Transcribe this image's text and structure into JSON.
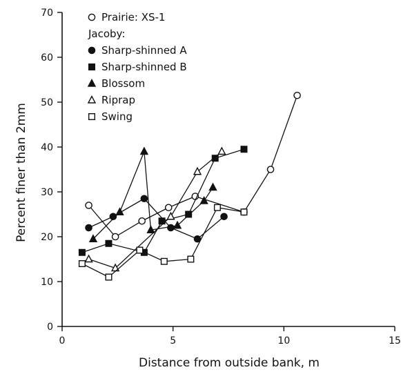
{
  "chart_data": {
    "type": "line",
    "xlabel": "Distance from outside bank, m",
    "ylabel": "Percent finer than 2mm",
    "xlim": [
      0,
      15
    ],
    "ylim": [
      0,
      70
    ],
    "x_ticks": [
      "0",
      "5",
      "10",
      "15"
    ],
    "y_ticks": [
      "0",
      "10",
      "20",
      "30",
      "40",
      "50",
      "60",
      "70"
    ],
    "grid": false,
    "legend_position": "top-left",
    "legend_group_label": "Jacoby:",
    "series": [
      {
        "name": "Prairie: XS-1",
        "marker": "open-circle",
        "x": [
          1.2,
          2.4,
          3.6,
          4.8,
          6.0,
          8.2,
          9.4,
          10.6
        ],
        "y": [
          27,
          20,
          23.5,
          26.5,
          29,
          25.5,
          35,
          51.5
        ]
      },
      {
        "name": "Sharp-shinned A",
        "marker": "filled-circle",
        "x": [
          1.2,
          2.3,
          3.7,
          4.9,
          6.1,
          7.3
        ],
        "y": [
          22,
          24.5,
          28.5,
          22,
          19.5,
          24.5
        ]
      },
      {
        "name": "Sharp-shinned B",
        "marker": "filled-square",
        "x": [
          0.9,
          2.1,
          3.7,
          4.5,
          5.7,
          6.9,
          8.2
        ],
        "y": [
          16.5,
          18.5,
          16.5,
          23.5,
          25,
          37.5,
          39.5
        ]
      },
      {
        "name": "Blossom",
        "marker": "filled-triangle",
        "x": [
          1.4,
          2.6,
          3.7,
          4.0,
          5.2,
          6.4,
          6.8
        ],
        "y": [
          19.5,
          25.5,
          39,
          21.5,
          22.5,
          28,
          31
        ]
      },
      {
        "name": "Riprap",
        "marker": "open-triangle",
        "x": [
          1.2,
          2.4,
          4.9,
          6.1,
          7.2
        ],
        "y": [
          15,
          13,
          24.5,
          34.5,
          39
        ]
      },
      {
        "name": "Swing",
        "marker": "open-square",
        "x": [
          0.9,
          2.1,
          3.5,
          4.6,
          5.8,
          7.0,
          8.2
        ],
        "y": [
          14,
          11,
          17,
          14.5,
          15,
          26.5,
          25.5
        ]
      }
    ]
  }
}
